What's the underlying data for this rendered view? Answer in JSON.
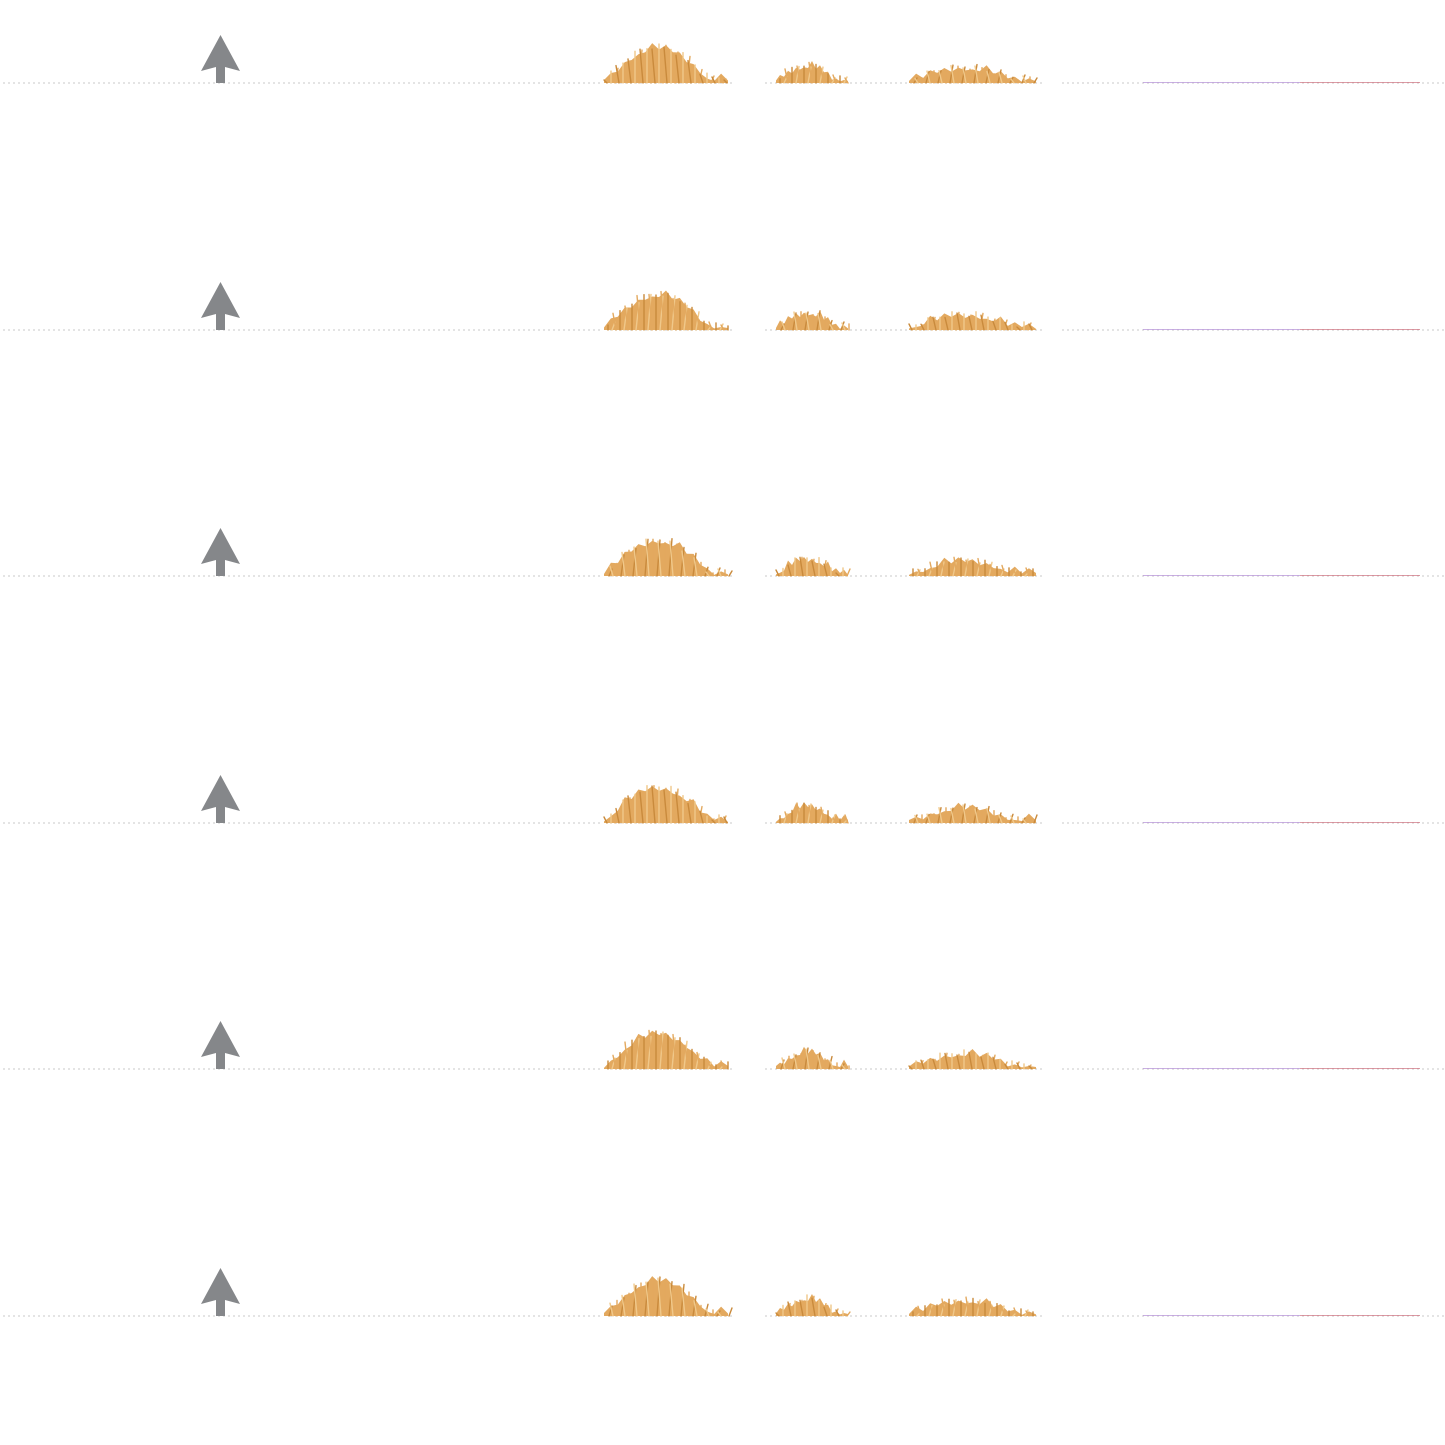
{
  "strips": [
    {
      "arrow_icon": "up-arrow-icon",
      "clump_icons": [
        "hay-clump-icon",
        "hay-clump-icon",
        "hay-clump-icon"
      ]
    },
    {
      "arrow_icon": "up-arrow-icon",
      "clump_icons": [
        "hay-clump-icon",
        "hay-clump-icon",
        "hay-clump-icon"
      ]
    },
    {
      "arrow_icon": "up-arrow-icon",
      "clump_icons": [
        "hay-clump-icon",
        "hay-clump-icon",
        "hay-clump-icon"
      ]
    },
    {
      "arrow_icon": "up-arrow-icon",
      "clump_icons": [
        "hay-clump-icon",
        "hay-clump-icon",
        "hay-clump-icon"
      ]
    },
    {
      "arrow_icon": "up-arrow-icon",
      "clump_icons": [
        "hay-clump-icon",
        "hay-clump-icon",
        "hay-clump-icon"
      ]
    },
    {
      "arrow_icon": "up-arrow-icon",
      "clump_icons": [
        "hay-clump-icon",
        "hay-clump-icon",
        "hay-clump-icon"
      ]
    }
  ],
  "colors": {
    "background": "#ffffff",
    "arrow": "#85878a",
    "hay_light": "#f0c88a",
    "hay_mid": "#e3a95f",
    "hay_dark": "#c98a3c",
    "ground_line": "#c8c8c8",
    "accent_purple": "#b48fd8",
    "accent_red": "#c85a6a"
  }
}
